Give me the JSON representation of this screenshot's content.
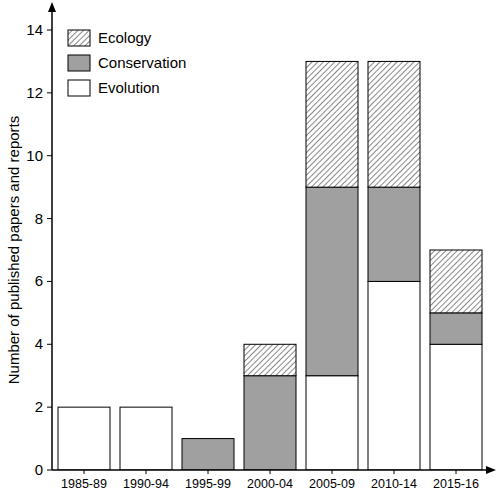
{
  "chart_data": {
    "type": "bar",
    "stacked": true,
    "y_label": "Number of published papers and reports",
    "categories": [
      "1985-89",
      "1990-94",
      "1995-99",
      "2000-04",
      "2005-09",
      "2010-14",
      "2015-16"
    ],
    "series": [
      {
        "name": "Evolution",
        "color": "#ffffff",
        "values": [
          2,
          2,
          0,
          0,
          3,
          6,
          4
        ]
      },
      {
        "name": "Conservation",
        "color": "#a0a0a0",
        "values": [
          0,
          0,
          1,
          3,
          6,
          3,
          1
        ]
      },
      {
        "name": "Ecology",
        "color": "#555555",
        "line_style": "hatched",
        "values": [
          0,
          0,
          0,
          1,
          4,
          4,
          2
        ]
      }
    ],
    "ylim": [
      0,
      14
    ],
    "yticks": [
      0,
      2,
      4,
      6,
      8,
      10,
      12,
      14
    ],
    "legend": "top-left"
  }
}
